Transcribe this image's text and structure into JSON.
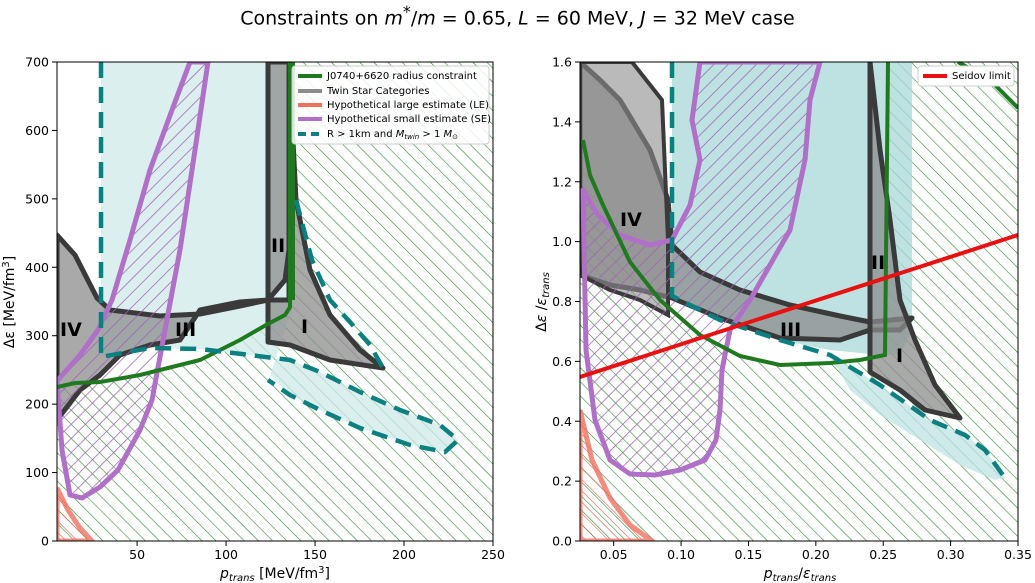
{
  "figure": {
    "title": "Constraints on m*/m = 0.65, L = 60 MeV, J = 32 MeV case"
  },
  "colors": {
    "green": "#1f7a1f",
    "green_hatch": "#2e8b2e",
    "gray_fill": "#8c8c8c",
    "gray_edge": "#3a3a3a",
    "teal": "#0b8080",
    "teal_fill": "#bfe3e3",
    "salmon": "#f07060",
    "purple": "#b070c8",
    "red": "#e81010"
  },
  "chart_data": [
    {
      "type": "area",
      "panel": "left",
      "xlabel": "p_trans [MeV/fm³]",
      "ylabel": "Δε [MeV/fm³]",
      "xlim": [
        5,
        250
      ],
      "ylim": [
        0,
        700
      ],
      "xticks": [
        50,
        100,
        150,
        200,
        250
      ],
      "yticks": [
        0,
        100,
        200,
        300,
        400,
        500,
        600,
        700
      ],
      "legend": {
        "position": "top-right",
        "entries": [
          "J0740+6620 radius constraint",
          "Twin Star Categories",
          "Hypothetical large estimate (LE)",
          "Hypothetical small estimate (SE)",
          "R > 1km and M_twin > 1 M_⊙"
        ]
      },
      "region_labels": [
        {
          "text": "IV",
          "x": 13,
          "y": 310
        },
        {
          "text": "III",
          "x": 78,
          "y": 310
        },
        {
          "text": "II",
          "x": 128,
          "y": 430
        },
        {
          "text": "I",
          "x": 146,
          "y": 315
        }
      ],
      "series": [
        {
          "name": "J0740+6620 radius constraint (boundary)",
          "x": [
            5,
            10,
            20,
            40,
            70,
            100,
            125,
            130,
            135,
            135,
            134
          ],
          "y": [
            225,
            228,
            225,
            230,
            245,
            272,
            300,
            320,
            350,
            700,
            700
          ]
        },
        {
          "name": "Twin star categories boundary (upper)",
          "x": [
            5,
            15,
            28,
            40,
            70,
            100,
            123,
            140,
            150,
            160
          ],
          "y": [
            445,
            400,
            355,
            340,
            330,
            345,
            355,
            340,
            310,
            260
          ]
        },
        {
          "name": "Twin star categories boundary (lower)",
          "x": [
            5,
            15,
            28,
            50,
            80,
            100,
            123,
            150,
            175
          ],
          "y": [
            175,
            205,
            240,
            275,
            290,
            295,
            292,
            275,
            252
          ]
        },
        {
          "name": "Hypothetical large estimate (LE)",
          "x": [
            5,
            10,
            15,
            20
          ],
          "y": [
            75,
            45,
            18,
            0
          ]
        },
        {
          "name": "Hypothetical small estimate (SE) outline",
          "x": [
            6,
            10,
            20,
            30,
            40,
            50,
            60,
            80,
            100,
            110,
            95,
            80,
            60,
            40,
            25,
            15,
            6
          ],
          "y": [
            240,
            150,
            60,
            70,
            100,
            140,
            200,
            400,
            640,
            700,
            700,
            560,
            420,
            330,
            280,
            250,
            240
          ]
        },
        {
          "name": "R > 1km and M_twin > 1 M_⊙ (teal boundary)",
          "x": [
            28,
            28,
            60,
            100,
            140,
            170,
            200,
            222,
            215,
            180,
            150,
            120,
            100,
            80
          ],
          "y": [
            700,
            265,
            290,
            285,
            275,
            245,
            205,
            150,
            140,
            160,
            200,
            245,
            260,
            270
          ]
        }
      ]
    },
    {
      "type": "area",
      "panel": "right",
      "xlabel": "p_trans / ε_trans",
      "ylabel": "Δε / ε_trans",
      "xlim": [
        0.025,
        0.35
      ],
      "ylim": [
        0.0,
        1.6
      ],
      "xticks": [
        0.05,
        0.1,
        0.15,
        0.2,
        0.25,
        0.3,
        0.35
      ],
      "xtick_labels": [
        "0.05",
        "0.10",
        "0.15",
        "0.20",
        "0.25",
        "0.30",
        "0.35"
      ],
      "yticks": [
        0.0,
        0.2,
        0.4,
        0.6,
        0.8,
        1.0,
        1.2,
        1.4,
        1.6
      ],
      "ytick_labels": [
        "0.0",
        "0.2",
        "0.4",
        "0.6",
        "0.8",
        "1.0",
        "1.2",
        "1.4",
        "1.6"
      ],
      "legend": {
        "position": "top-right",
        "entries": [
          "Seidov limit"
        ]
      },
      "region_labels": [
        {
          "text": "IV",
          "x": 0.068,
          "y": 1.05
        },
        {
          "text": "III",
          "x": 0.179,
          "y": 0.7
        },
        {
          "text": "II",
          "x": 0.246,
          "y": 0.92
        },
        {
          "text": "I",
          "x": 0.262,
          "y": 0.6
        }
      ],
      "series": [
        {
          "name": "Seidov limit",
          "x": [
            0.025,
            0.35
          ],
          "y": [
            0.54,
            1.02
          ]
        },
        {
          "name": "J0740+6620 radius constraint (boundary)",
          "x": [
            0.025,
            0.04,
            0.06,
            0.09,
            0.12,
            0.16,
            0.2,
            0.235,
            0.26,
            0.26,
            0.265,
            0.27
          ],
          "y": [
            1.32,
            1.15,
            0.95,
            0.8,
            0.7,
            0.62,
            0.59,
            0.6,
            0.62,
            1.6,
            1.6,
            1.58
          ]
        },
        {
          "name": "Twin star categories boundary (upper)",
          "x": [
            0.025,
            0.05,
            0.088,
            0.12,
            0.16,
            0.2,
            0.24,
            0.26,
            0.3
          ],
          "y": [
            1.6,
            1.3,
            1.1,
            0.95,
            0.82,
            0.74,
            0.71,
            0.72,
            0.66
          ]
        },
        {
          "name": "Twin star categories boundary (lower)",
          "x": [
            0.025,
            0.05,
            0.088,
            0.12,
            0.16,
            0.2,
            0.24,
            0.28,
            0.31
          ],
          "y": [
            0.87,
            0.82,
            0.78,
            0.74,
            0.7,
            0.65,
            0.59,
            0.49,
            0.4
          ]
        },
        {
          "name": "Hypothetical large estimate (LE)",
          "x": [
            0.025,
            0.04,
            0.06,
            0.08
          ],
          "y": [
            0.4,
            0.22,
            0.07,
            0.0
          ]
        },
        {
          "name": "Hypothetical small estimate (SE) outline",
          "x": [
            0.03,
            0.04,
            0.06,
            0.08,
            0.1,
            0.12,
            0.125,
            0.13,
            0.16,
            0.18,
            0.2,
            0.17,
            0.15,
            0.12,
            0.1,
            0.08,
            0.05,
            0.03
          ],
          "y": [
            1.2,
            0.42,
            0.25,
            0.22,
            0.24,
            0.34,
            0.5,
            0.55,
            0.75,
            0.9,
            1.6,
            1.6,
            1.35,
            1.05,
            0.95,
            0.9,
            1.0,
            1.2
          ]
        },
        {
          "name": "R > 1km and M_twin > 1 M_⊙ (teal boundary)",
          "x": [
            0.093,
            0.093,
            0.14,
            0.2,
            0.25,
            0.29,
            0.33,
            0.345,
            0.3,
            0.25,
            0.2
          ],
          "y": [
            1.6,
            0.82,
            0.72,
            0.65,
            0.5,
            0.38,
            0.27,
            0.21,
            0.22,
            0.35,
            0.55
          ]
        }
      ]
    }
  ]
}
